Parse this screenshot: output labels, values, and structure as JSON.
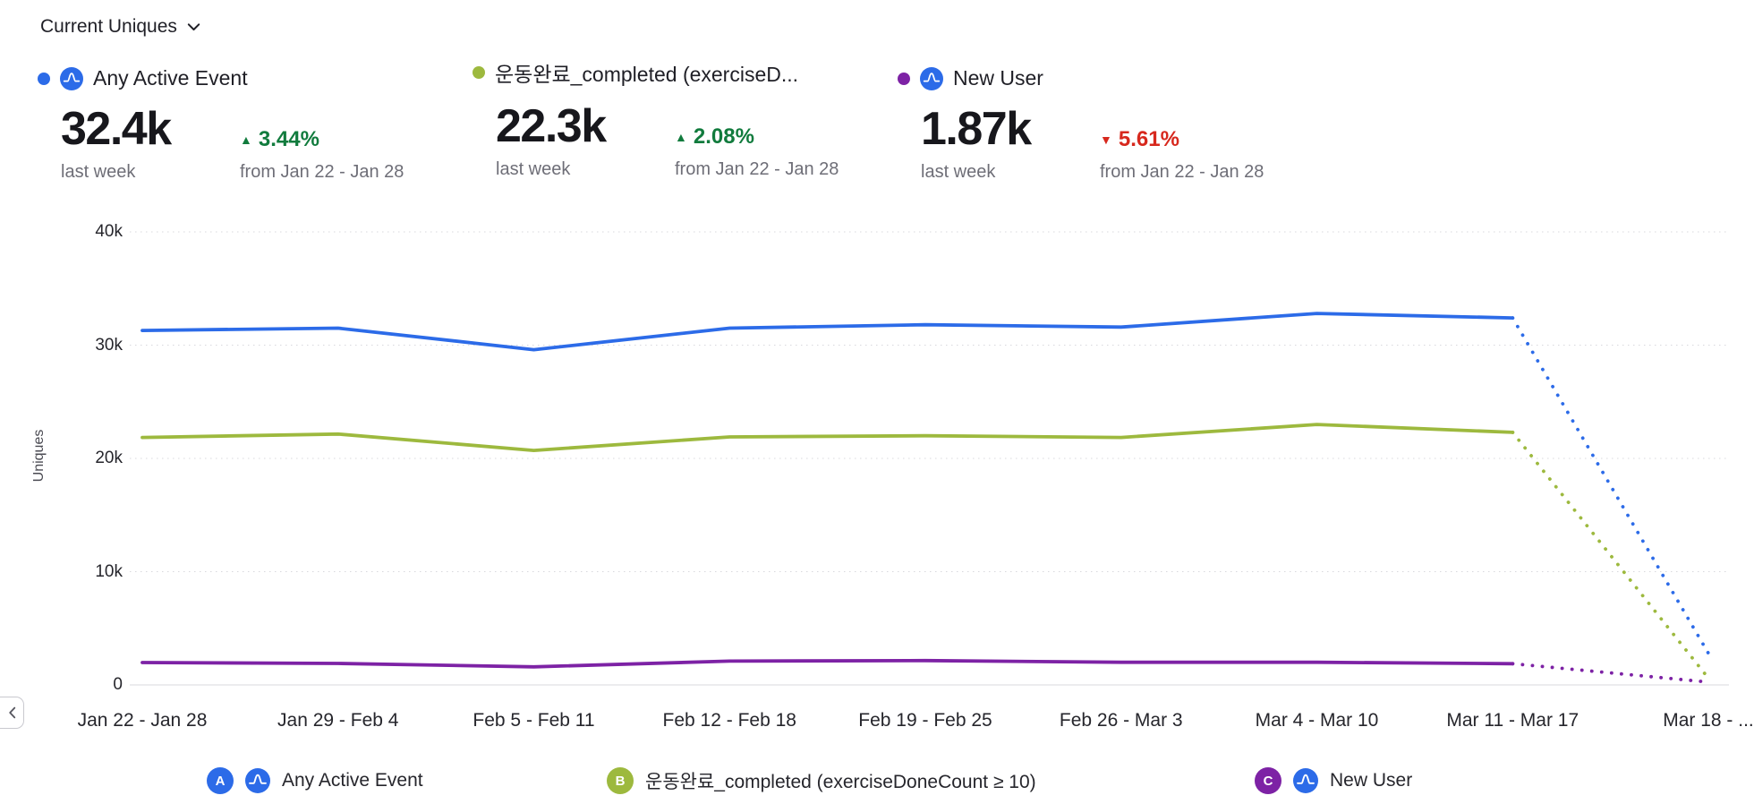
{
  "header": {
    "title": "Current Uniques"
  },
  "colors": {
    "amplitude_blue": "#2c6be8",
    "series_blue": "#2c6be8",
    "series_green": "#9db93e",
    "series_purple": "#7d22a5",
    "grid": "#d8d8dd",
    "muted_text": "#6e6e77"
  },
  "delta_colors": {
    "up": "#117b3d",
    "down": "#d7281d"
  },
  "metrics": [
    {
      "badge": "A",
      "name": "Any Active Event",
      "color": "#2c6be8",
      "amplitude_icon": true,
      "value": "32.4k",
      "value_caption": "last week",
      "delta": "3.44%",
      "delta_direction": "up",
      "delta_caption": "from Jan 22 - Jan 28"
    },
    {
      "badge": "B",
      "name": "운동완료_completed (exerciseD...",
      "color": "#9db93e",
      "amplitude_icon": false,
      "value": "22.3k",
      "value_caption": "last week",
      "delta": "2.08%",
      "delta_direction": "up",
      "delta_caption": "from Jan 22 - Jan 28"
    },
    {
      "badge": "C",
      "name": "New User",
      "color": "#7d22a5",
      "amplitude_icon": true,
      "value": "1.87k",
      "value_caption": "last week",
      "delta": "5.61%",
      "delta_direction": "down",
      "delta_caption": "from Jan 22 - Jan 28"
    }
  ],
  "chart_data": {
    "type": "line",
    "title": "Current Uniques",
    "xlabel": "",
    "ylabel": "Uniques",
    "ylim": [
      0,
      40000
    ],
    "grid": "dotted-horizontal",
    "legend_position": "bottom",
    "yticks": [
      {
        "label": "0",
        "value": 0
      },
      {
        "label": "10k",
        "value": 10000
      },
      {
        "label": "20k",
        "value": 20000
      },
      {
        "label": "30k",
        "value": 30000
      },
      {
        "label": "40k",
        "value": 40000
      }
    ],
    "categories": [
      "Jan 22 - Jan 28",
      "Jan 29 - Feb 4",
      "Feb 5 - Feb 11",
      "Feb 12 - Feb 18",
      "Feb 19 - Feb 25",
      "Feb 26 - Mar 3",
      "Mar 4 - Mar 10",
      "Mar 11 - Mar 17",
      "Mar 18 - ..."
    ],
    "series": [
      {
        "name": "Any Active Event",
        "color": "#2c6be8",
        "values": [
          31300,
          31500,
          29600,
          31500,
          31800,
          31600,
          32800,
          32400,
          2800
        ],
        "last_segment_dotted": true
      },
      {
        "name": "운동완료_completed (exerciseDoneCount ≥ 10)",
        "color": "#9db93e",
        "values": [
          21850,
          22150,
          20700,
          21900,
          22000,
          21850,
          23000,
          22300,
          600
        ],
        "last_segment_dotted": true
      },
      {
        "name": "New User",
        "color": "#7d22a5",
        "values": [
          1980,
          1900,
          1600,
          2100,
          2150,
          2000,
          2000,
          1870,
          250
        ],
        "last_segment_dotted": true
      }
    ]
  },
  "legend": [
    {
      "badge": "A",
      "color": "#2c6be8",
      "amplitude_icon": true,
      "label": "Any Active Event"
    },
    {
      "badge": "B",
      "color": "#9db93e",
      "amplitude_icon": false,
      "label": "운동완료_completed (exerciseDoneCount ≥ 10)"
    },
    {
      "badge": "C",
      "color": "#7d22a5",
      "amplitude_icon": true,
      "label": "New User"
    }
  ],
  "nav": {
    "collapse": "‹"
  }
}
